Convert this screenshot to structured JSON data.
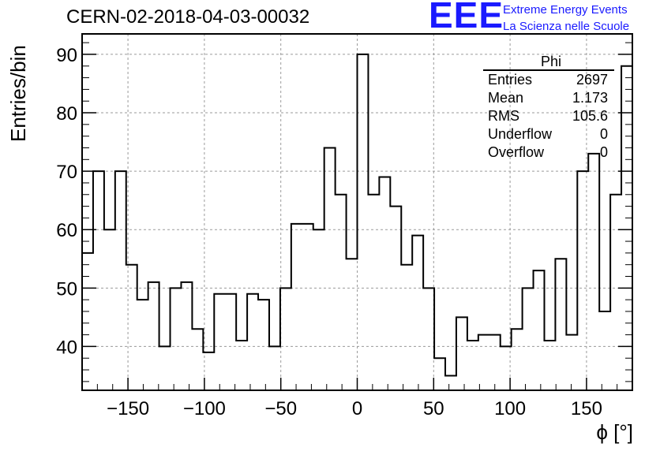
{
  "header": {
    "run_id": "CERN-02-2018-04-03-00032",
    "logo_text": "EEE",
    "logo_line1": "Extreme Energy Events",
    "logo_line2": "La Scienza nelle Scuole"
  },
  "stats_box": {
    "name": "Phi",
    "rows": [
      {
        "key": "Entries",
        "value": "2697"
      },
      {
        "key": "Mean",
        "value": "1.173"
      },
      {
        "key": "RMS",
        "value": "105.6"
      },
      {
        "key": "Underflow",
        "value": "0"
      },
      {
        "key": "Overflow",
        "value": "0"
      }
    ]
  },
  "colors": {
    "line": "#000000",
    "grid": "#9a9a9a",
    "logo": "#1a1aff"
  },
  "chart_data": {
    "type": "histogram",
    "title": "CERN-02-2018-04-03-00032",
    "xlabel": "ϕ [°]",
    "ylabel": "Entries/bin",
    "xlim": [
      -180,
      180
    ],
    "ylim": [
      32.5,
      93.5
    ],
    "bin_width": 7.2,
    "bin_edges_start": -180,
    "values": [
      56,
      70,
      60,
      70,
      54,
      48,
      51,
      40,
      50,
      51,
      43,
      39,
      49,
      49,
      41,
      49,
      48,
      40,
      50,
      61,
      61,
      60,
      74,
      66,
      55,
      90,
      66,
      69,
      64,
      54,
      59,
      50,
      38,
      35,
      45,
      41,
      42,
      42,
      40,
      43,
      50,
      53,
      41,
      55,
      42,
      70,
      73,
      46,
      66,
      88
    ],
    "x_ticks": [
      -150,
      -100,
      -50,
      0,
      50,
      100,
      150
    ],
    "x_tick_labels": [
      "−150",
      "−100",
      "−50",
      "0",
      "50",
      "100",
      "150"
    ],
    "y_ticks": [
      40,
      50,
      60,
      70,
      80,
      90
    ],
    "y_tick_labels": [
      "40",
      "50",
      "60",
      "70",
      "80",
      "90"
    ],
    "grid": true,
    "legend_position": "top-right"
  }
}
